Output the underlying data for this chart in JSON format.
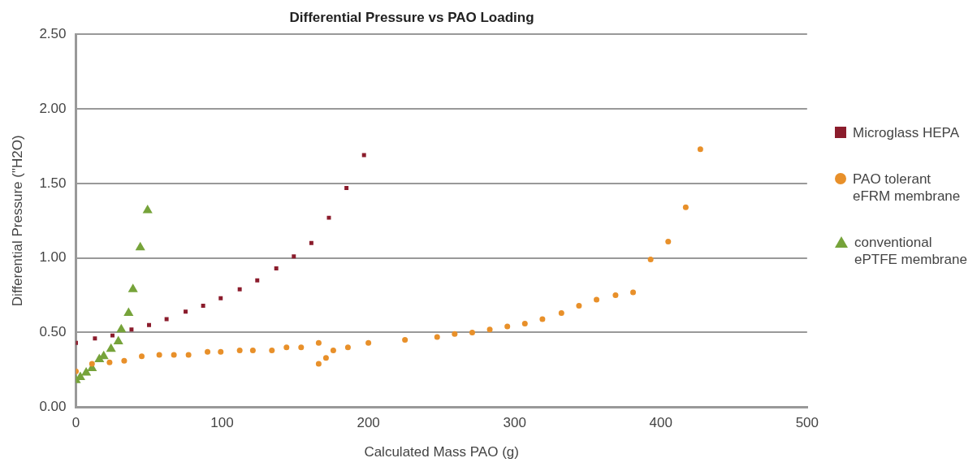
{
  "chart_data": {
    "type": "scatter",
    "title": "Differential Pressure vs PAO Loading",
    "xlabel": "Calculated Mass PAO (g)",
    "ylabel": "Differential Pressure (\"H2O)",
    "xlim": [
      0,
      500
    ],
    "xticks": [
      0,
      100,
      200,
      300,
      400,
      500
    ],
    "ylim": [
      0,
      2.5
    ],
    "yticks": [
      {
        "value": 0,
        "label": "0.00"
      },
      {
        "value": 0.5,
        "label": "0.50"
      },
      {
        "value": 1,
        "label": "1.00"
      },
      {
        "value": 1.5,
        "label": "1.50"
      },
      {
        "value": 2,
        "label": "2.00"
      },
      {
        "value": 2.5,
        "label": "2.50"
      }
    ],
    "grid": "y",
    "legend": "right",
    "series": [
      {
        "name": "Microglass HEPA",
        "color": "#8b1c2c",
        "marker": "square",
        "x": [
          0,
          13,
          25,
          38,
          50,
          62,
          75,
          87,
          99,
          112,
          124,
          137,
          149,
          161,
          173,
          185,
          197
        ],
        "values": [
          0.43,
          0.46,
          0.48,
          0.52,
          0.55,
          0.59,
          0.64,
          0.68,
          0.73,
          0.79,
          0.85,
          0.93,
          1.01,
          1.1,
          1.27,
          1.47,
          1.69
        ]
      },
      {
        "name": "PAO tolerant eFRM membrane",
        "color": "#e8902a",
        "marker": "circle",
        "x": [
          0,
          11,
          23,
          33,
          45,
          57,
          67,
          77,
          90,
          99,
          112,
          121,
          134,
          144,
          154,
          166,
          166,
          171,
          176,
          186,
          200,
          225,
          247,
          259,
          271,
          283,
          295,
          307,
          319,
          332,
          344,
          356,
          369,
          381,
          393,
          405,
          417,
          427
        ],
        "values": [
          0.24,
          0.29,
          0.3,
          0.31,
          0.34,
          0.35,
          0.35,
          0.35,
          0.37,
          0.37,
          0.38,
          0.38,
          0.38,
          0.4,
          0.4,
          0.43,
          0.29,
          0.33,
          0.38,
          0.4,
          0.43,
          0.45,
          0.47,
          0.49,
          0.5,
          0.52,
          0.54,
          0.56,
          0.59,
          0.63,
          0.68,
          0.72,
          0.75,
          0.77,
          0.99,
          1.11,
          1.34,
          1.73
        ]
      },
      {
        "name": "conventional ePTFE membrane",
        "color": "#76a33a",
        "marker": "triangle",
        "x": [
          0,
          3,
          7,
          11,
          16,
          19,
          24,
          29,
          31,
          36,
          39,
          44,
          49
        ],
        "values": [
          0.18,
          0.2,
          0.23,
          0.26,
          0.32,
          0.34,
          0.39,
          0.44,
          0.52,
          0.63,
          0.79,
          1.07,
          1.32
        ]
      }
    ]
  }
}
